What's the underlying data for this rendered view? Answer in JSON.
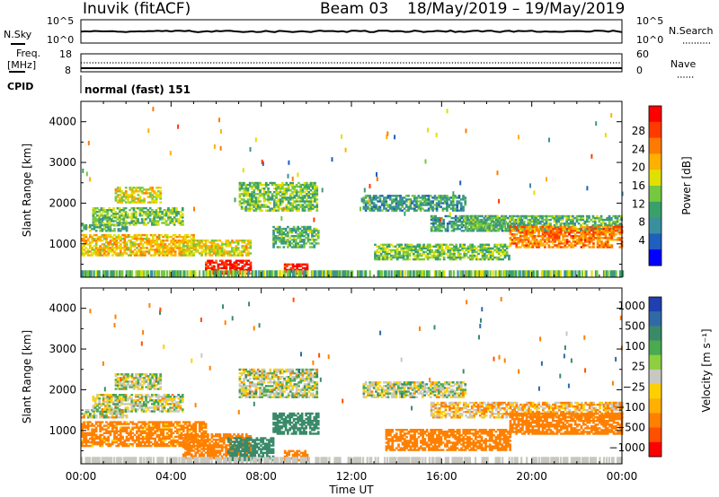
{
  "header": {
    "station": "Inuvik (fitACF)",
    "beam": "Beam 03",
    "date_range": "18/May/2019 – 19/May/2019"
  },
  "panel_nsky": {
    "left_label": "N.Sky",
    "right_label": "N.Search",
    "left_ticks": [
      "10^5",
      "10^0"
    ],
    "right_ticks": [
      "10^5",
      "10^0"
    ]
  },
  "panel_freq": {
    "left_label_1": "Freq.",
    "left_label_2": "[MHz]",
    "right_label": "Nave",
    "left_ticks": [
      "18",
      "8"
    ],
    "right_ticks": [
      "60",
      "0"
    ]
  },
  "panel_cpid": {
    "label": "CPID",
    "text": "normal (fast) 151"
  },
  "colorbar_power": {
    "label": "Power [dB]",
    "ticks": [
      "28",
      "24",
      "20",
      "16",
      "12",
      "8",
      "4"
    ],
    "colors": [
      "#0000ff",
      "#1f5fbf",
      "#3a8f9f",
      "#3aa06a",
      "#76c840",
      "#e0e000",
      "#ffb000",
      "#ff7a00",
      "#ff3a00",
      "#ff0000"
    ]
  },
  "colorbar_velocity": {
    "label": "Velocity [m s⁻¹]",
    "ticks": [
      "1000",
      "500",
      "100",
      "25",
      "−25",
      "−100",
      "−500",
      "−1000"
    ],
    "colors": [
      "#2040b0",
      "#2f6aa6",
      "#3a8a6a",
      "#4aaa50",
      "#8cd040",
      "#c8c8c0",
      "#ffd000",
      "#ffb000",
      "#ff8000",
      "#ff5000",
      "#ff0000"
    ]
  },
  "chart_data": {
    "type": "heatmap",
    "xlabel": "Time UT",
    "ylabel": "Slant Range [km]",
    "x_ticks": [
      "00:00",
      "04:00",
      "08:00",
      "12:00",
      "16:00",
      "20:00",
      "00:00"
    ],
    "xlim_hours": [
      0,
      24
    ],
    "y_ticks": [
      1000,
      2000,
      3000,
      4000
    ],
    "ylim": [
      180,
      4500
    ],
    "power_bands": [
      {
        "t0": 0.0,
        "t1": 2.0,
        "r0": 1300,
        "r1": 1450,
        "p": 12
      },
      {
        "t0": 0.5,
        "t1": 4.5,
        "r0": 1450,
        "r1": 1900,
        "p": 14
      },
      {
        "t0": 1.5,
        "t1": 3.5,
        "r0": 2000,
        "r1": 2400,
        "p": 18
      },
      {
        "t0": 0.0,
        "t1": 5.0,
        "r0": 700,
        "r1": 1200,
        "p": 20
      },
      {
        "t0": 4.5,
        "t1": 7.5,
        "r0": 700,
        "r1": 1100,
        "p": 18
      },
      {
        "t0": 5.5,
        "t1": 7.5,
        "r0": 250,
        "r1": 600,
        "p": 30
      },
      {
        "t0": 7.0,
        "t1": 10.5,
        "r0": 1800,
        "r1": 2500,
        "p": 14
      },
      {
        "t0": 8.5,
        "t1": 10.5,
        "r0": 900,
        "r1": 1400,
        "p": 12
      },
      {
        "t0": 9.0,
        "t1": 10.0,
        "r0": 250,
        "r1": 500,
        "p": 30
      },
      {
        "t0": 12.5,
        "t1": 17.0,
        "r0": 1800,
        "r1": 2200,
        "p": 10
      },
      {
        "t0": 15.5,
        "t1": 19.5,
        "r0": 1300,
        "r1": 1700,
        "p": 10
      },
      {
        "t0": 17.0,
        "t1": 24.0,
        "r0": 1300,
        "r1": 1700,
        "p": 12
      },
      {
        "t0": 13.0,
        "t1": 19.0,
        "r0": 600,
        "r1": 1000,
        "p": 14
      },
      {
        "t0": 19.0,
        "t1": 24.0,
        "r0": 900,
        "r1": 1400,
        "p": 24
      }
    ],
    "velocity_bands": [
      {
        "t0": 0.0,
        "t1": 2.0,
        "r0": 1300,
        "r1": 1500,
        "v": 0
      },
      {
        "t0": 0.5,
        "t1": 4.5,
        "r0": 1450,
        "r1": 1900,
        "v": 0
      },
      {
        "t0": 1.5,
        "t1": 3.5,
        "r0": 2000,
        "r1": 2400,
        "v": 0
      },
      {
        "t0": 0.0,
        "t1": 5.5,
        "r0": 600,
        "r1": 1200,
        "v": -120
      },
      {
        "t0": 4.5,
        "t1": 7.5,
        "r0": 300,
        "r1": 900,
        "v": -150
      },
      {
        "t0": 6.5,
        "t1": 8.5,
        "r0": 250,
        "r1": 800,
        "v": 150
      },
      {
        "t0": 7.0,
        "t1": 10.5,
        "r0": 1800,
        "r1": 2500,
        "v": 0
      },
      {
        "t0": 8.5,
        "t1": 10.5,
        "r0": 900,
        "r1": 1400,
        "v": 200
      },
      {
        "t0": 9.0,
        "t1": 10.0,
        "r0": 250,
        "r1": 500,
        "v": -200
      },
      {
        "t0": 12.5,
        "t1": 17.0,
        "r0": 1800,
        "r1": 2200,
        "v": 0
      },
      {
        "t0": 15.5,
        "t1": 24.0,
        "r0": 1300,
        "r1": 1700,
        "v": -50
      },
      {
        "t0": 13.5,
        "t1": 19.0,
        "r0": 500,
        "r1": 1000,
        "v": -150
      },
      {
        "t0": 19.0,
        "t1": 24.0,
        "r0": 900,
        "r1": 1400,
        "v": -180
      }
    ]
  }
}
